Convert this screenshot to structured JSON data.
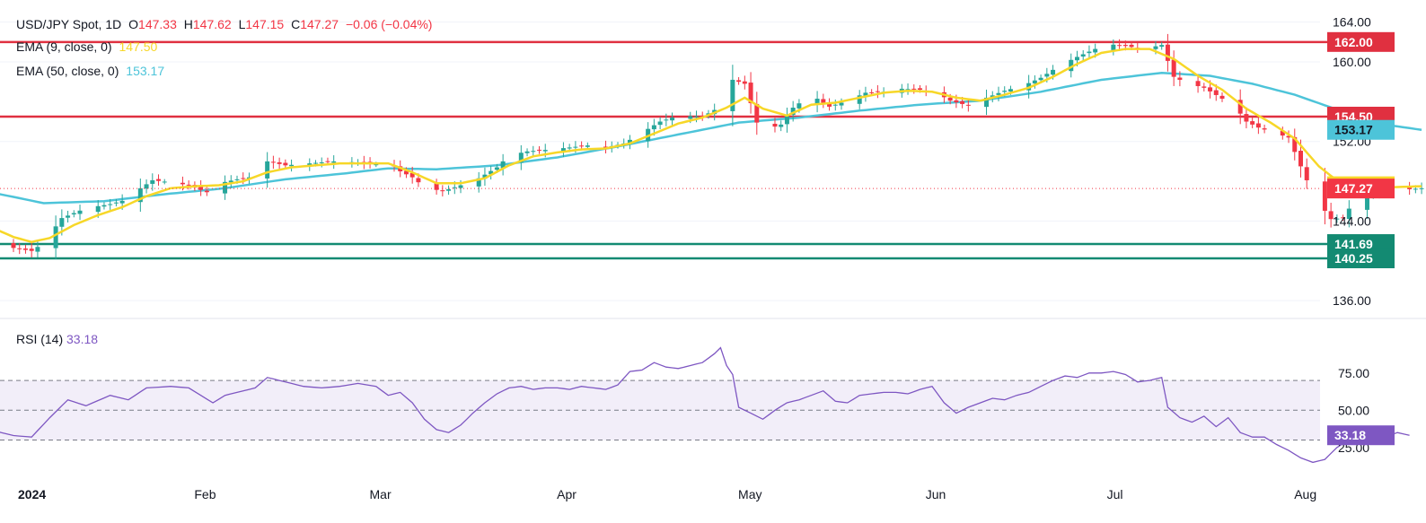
{
  "header": {
    "symbol": "USD/JPY Spot, 1D",
    "open_label": "O",
    "open": "147.33",
    "high_label": "H",
    "high": "147.62",
    "low_label": "L",
    "low": "147.15",
    "close_label": "C",
    "close": "147.27",
    "change": "−0.06 (−0.04%)"
  },
  "indicators": {
    "ema9_label": "EMA (9, close, 0)",
    "ema9_value": "147.50",
    "ema50_label": "EMA (50, close, 0)",
    "ema50_value": "153.17",
    "rsi_label": "RSI (14)",
    "rsi_value": "33.18"
  },
  "colors": {
    "up": "#26a69a",
    "down": "#f23645",
    "ema9": "#f7d728",
    "ema50": "#4dc4d9",
    "rsi": "#7e57c2",
    "resistance": "#e03040",
    "support": "#138a72"
  },
  "chart_data": {
    "type": "candlestick",
    "price_axis": {
      "ticks": [
        "164.00",
        "160.00",
        "152.00",
        "144.00",
        "136.00"
      ],
      "tick_values": [
        164,
        160,
        152,
        144,
        136
      ],
      "ylim": [
        134.3,
        165.5
      ]
    },
    "x_axis": {
      "labels": [
        "2024",
        "Feb",
        "Mar",
        "Apr",
        "May",
        "Jun",
        "Jul",
        "Aug"
      ],
      "label_days": [
        0,
        32,
        61,
        92,
        122,
        153,
        183,
        214
      ]
    },
    "levels": [
      {
        "label": "162.00",
        "value": 162.0,
        "kind": "resistance"
      },
      {
        "label": "154.50",
        "value": 154.5,
        "kind": "resistance"
      },
      {
        "label": "141.69",
        "value": 141.69,
        "kind": "support"
      },
      {
        "label": "140.25",
        "value": 140.25,
        "kind": "support"
      }
    ],
    "last_price": {
      "label": "147.27",
      "value": 147.27
    },
    "ema9_tag": {
      "label": "147.50",
      "value": 147.5
    },
    "ema50_tag": {
      "label": "153.17",
      "value": 153.17
    },
    "close_keypoints": [
      [
        -3,
        141.9
      ],
      [
        0,
        141.3
      ],
      [
        3,
        141.0
      ],
      [
        5,
        141.8
      ],
      [
        8,
        144.3
      ],
      [
        12,
        145.3
      ],
      [
        16,
        145.7
      ],
      [
        19,
        146.2
      ],
      [
        21,
        147.3
      ],
      [
        23,
        148.1
      ],
      [
        26,
        147.9
      ],
      [
        29,
        147.6
      ],
      [
        32,
        146.9
      ],
      [
        34,
        147.8
      ],
      [
        37,
        148.2
      ],
      [
        40,
        148.5
      ],
      [
        42,
        150.0
      ],
      [
        45,
        149.6
      ],
      [
        49,
        149.8
      ],
      [
        53,
        150.0
      ],
      [
        57,
        149.9
      ],
      [
        60,
        149.7
      ],
      [
        62,
        150.1
      ],
      [
        64,
        149.0
      ],
      [
        66,
        148.4
      ],
      [
        68,
        147.4
      ],
      [
        71,
        147.0
      ],
      [
        74,
        147.6
      ],
      [
        77,
        148.3
      ],
      [
        80,
        149.4
      ],
      [
        82,
        150.6
      ],
      [
        85,
        151.0
      ],
      [
        89,
        151.2
      ],
      [
        92,
        151.4
      ],
      [
        95,
        151.6
      ],
      [
        98,
        151.4
      ],
      [
        101,
        151.8
      ],
      [
        104,
        152.9
      ],
      [
        107,
        154.0
      ],
      [
        110,
        154.6
      ],
      [
        114,
        154.5
      ],
      [
        117,
        155.5
      ],
      [
        119,
        158.2
      ],
      [
        121,
        157.8
      ],
      [
        123,
        153.9
      ],
      [
        125,
        153.3
      ],
      [
        127,
        153.7
      ],
      [
        129,
        155.4
      ],
      [
        132,
        156.7
      ],
      [
        135,
        155.5
      ],
      [
        138,
        156.1
      ],
      [
        141,
        156.9
      ],
      [
        144,
        157.0
      ],
      [
        147,
        157.3
      ],
      [
        150,
        157.2
      ],
      [
        153,
        156.8
      ],
      [
        155,
        156.1
      ],
      [
        158,
        155.6
      ],
      [
        161,
        156.4
      ],
      [
        164,
        157.1
      ],
      [
        167,
        157.6
      ],
      [
        170,
        158.4
      ],
      [
        173,
        159.6
      ],
      [
        176,
        160.5
      ],
      [
        179,
        161.3
      ],
      [
        181,
        161.8
      ],
      [
        184,
        161.6
      ],
      [
        187,
        161.3
      ],
      [
        190,
        161.7
      ],
      [
        192,
        158.5
      ],
      [
        194,
        157.9
      ],
      [
        197,
        157.4
      ],
      [
        200,
        156.3
      ],
      [
        202,
        155.6
      ],
      [
        204,
        154.0
      ],
      [
        206,
        153.4
      ],
      [
        208,
        153.0
      ],
      [
        211,
        152.4
      ],
      [
        213,
        149.5
      ],
      [
        215,
        146.7
      ],
      [
        218,
        144.2
      ],
      [
        220,
        144.3
      ],
      [
        222,
        146.2
      ],
      [
        225,
        146.8
      ],
      [
        228,
        147.5
      ],
      [
        231,
        147.2
      ],
      [
        233,
        147.3
      ]
    ],
    "ema9_keypoints": [
      [
        -3,
        143.2
      ],
      [
        0,
        142.4
      ],
      [
        3,
        141.9
      ],
      [
        6,
        142.3
      ],
      [
        10,
        143.6
      ],
      [
        14,
        144.6
      ],
      [
        18,
        145.4
      ],
      [
        22,
        146.5
      ],
      [
        26,
        147.3
      ],
      [
        30,
        147.5
      ],
      [
        34,
        147.6
      ],
      [
        38,
        148.0
      ],
      [
        42,
        148.9
      ],
      [
        46,
        149.4
      ],
      [
        50,
        149.6
      ],
      [
        54,
        149.8
      ],
      [
        58,
        149.8
      ],
      [
        62,
        149.8
      ],
      [
        66,
        148.9
      ],
      [
        70,
        147.8
      ],
      [
        74,
        147.8
      ],
      [
        78,
        148.3
      ],
      [
        82,
        149.6
      ],
      [
        86,
        150.5
      ],
      [
        90,
        150.9
      ],
      [
        94,
        151.2
      ],
      [
        98,
        151.3
      ],
      [
        102,
        151.8
      ],
      [
        106,
        152.8
      ],
      [
        110,
        153.8
      ],
      [
        114,
        154.4
      ],
      [
        118,
        155.4
      ],
      [
        121,
        156.4
      ],
      [
        124,
        155.3
      ],
      [
        128,
        154.6
      ],
      [
        132,
        155.7
      ],
      [
        136,
        155.9
      ],
      [
        140,
        156.4
      ],
      [
        144,
        156.9
      ],
      [
        148,
        157.1
      ],
      [
        152,
        157.0
      ],
      [
        156,
        156.4
      ],
      [
        160,
        156.1
      ],
      [
        164,
        156.7
      ],
      [
        168,
        157.4
      ],
      [
        172,
        158.5
      ],
      [
        176,
        159.8
      ],
      [
        180,
        160.9
      ],
      [
        184,
        161.3
      ],
      [
        188,
        161.3
      ],
      [
        192,
        160.3
      ],
      [
        196,
        158.6
      ],
      [
        200,
        157.2
      ],
      [
        204,
        155.3
      ],
      [
        208,
        153.9
      ],
      [
        212,
        152.3
      ],
      [
        216,
        149.5
      ],
      [
        220,
        147.6
      ],
      [
        224,
        147.3
      ],
      [
        228,
        147.4
      ],
      [
        233,
        147.5
      ]
    ],
    "ema50_keypoints": [
      [
        -3,
        146.8
      ],
      [
        5,
        145.8
      ],
      [
        15,
        146.0
      ],
      [
        25,
        146.7
      ],
      [
        35,
        147.3
      ],
      [
        45,
        148.2
      ],
      [
        55,
        148.8
      ],
      [
        62,
        149.3
      ],
      [
        70,
        149.2
      ],
      [
        80,
        149.6
      ],
      [
        90,
        150.4
      ],
      [
        100,
        151.5
      ],
      [
        110,
        152.7
      ],
      [
        120,
        153.9
      ],
      [
        130,
        154.4
      ],
      [
        140,
        155.1
      ],
      [
        150,
        155.7
      ],
      [
        160,
        156.1
      ],
      [
        170,
        157.0
      ],
      [
        180,
        158.2
      ],
      [
        190,
        158.9
      ],
      [
        198,
        158.6
      ],
      [
        205,
        157.8
      ],
      [
        212,
        156.7
      ],
      [
        220,
        155.0
      ],
      [
        228,
        153.6
      ],
      [
        233,
        153.17
      ]
    ],
    "rsi": {
      "ticks": [
        "75.00",
        "50.00",
        "25.00"
      ],
      "tick_values": [
        75,
        50,
        25
      ],
      "ylim": [
        5,
        105
      ],
      "band": [
        30,
        70
      ],
      "midline": 50,
      "tag": {
        "label": "33.18",
        "value": 33.18
      },
      "keypoints": [
        [
          -3,
          36
        ],
        [
          0,
          33
        ],
        [
          3,
          32
        ],
        [
          6,
          45
        ],
        [
          9,
          57
        ],
        [
          12,
          53
        ],
        [
          16,
          60
        ],
        [
          19,
          57
        ],
        [
          22,
          65
        ],
        [
          26,
          66
        ],
        [
          29,
          65
        ],
        [
          31,
          60
        ],
        [
          33,
          55
        ],
        [
          35,
          60
        ],
        [
          37,
          62
        ],
        [
          40,
          65
        ],
        [
          42,
          72
        ],
        [
          45,
          69
        ],
        [
          48,
          66
        ],
        [
          51,
          65
        ],
        [
          54,
          66
        ],
        [
          57,
          68
        ],
        [
          60,
          66
        ],
        [
          62,
          60
        ],
        [
          64,
          62
        ],
        [
          66,
          55
        ],
        [
          68,
          44
        ],
        [
          70,
          37
        ],
        [
          72,
          35
        ],
        [
          74,
          40
        ],
        [
          76,
          48
        ],
        [
          78,
          55
        ],
        [
          80,
          61
        ],
        [
          82,
          65
        ],
        [
          84,
          66
        ],
        [
          86,
          64
        ],
        [
          88,
          65
        ],
        [
          90,
          65
        ],
        [
          92,
          64
        ],
        [
          94,
          66
        ],
        [
          96,
          65
        ],
        [
          98,
          64
        ],
        [
          100,
          67
        ],
        [
          102,
          76
        ],
        [
          104,
          77
        ],
        [
          106,
          82
        ],
        [
          108,
          79
        ],
        [
          110,
          78
        ],
        [
          112,
          80
        ],
        [
          114,
          82
        ],
        [
          116,
          88
        ],
        [
          117,
          92
        ],
        [
          118,
          80
        ],
        [
          119,
          74
        ],
        [
          120,
          52
        ],
        [
          122,
          48
        ],
        [
          124,
          44
        ],
        [
          126,
          50
        ],
        [
          128,
          55
        ],
        [
          130,
          57
        ],
        [
          132,
          60
        ],
        [
          134,
          63
        ],
        [
          136,
          56
        ],
        [
          138,
          55
        ],
        [
          140,
          60
        ],
        [
          142,
          61
        ],
        [
          144,
          62
        ],
        [
          146,
          62
        ],
        [
          148,
          61
        ],
        [
          150,
          64
        ],
        [
          152,
          66
        ],
        [
          154,
          55
        ],
        [
          156,
          48
        ],
        [
          158,
          52
        ],
        [
          160,
          55
        ],
        [
          162,
          58
        ],
        [
          164,
          57
        ],
        [
          166,
          60
        ],
        [
          168,
          62
        ],
        [
          170,
          66
        ],
        [
          172,
          70
        ],
        [
          174,
          73
        ],
        [
          176,
          72
        ],
        [
          178,
          75
        ],
        [
          180,
          75
        ],
        [
          182,
          76
        ],
        [
          184,
          74
        ],
        [
          186,
          69
        ],
        [
          188,
          70
        ],
        [
          190,
          72
        ],
        [
          191,
          52
        ],
        [
          193,
          45
        ],
        [
          195,
          42
        ],
        [
          197,
          46
        ],
        [
          199,
          39
        ],
        [
          201,
          45
        ],
        [
          203,
          35
        ],
        [
          205,
          32
        ],
        [
          207,
          32
        ],
        [
          209,
          27
        ],
        [
          211,
          23
        ],
        [
          213,
          18
        ],
        [
          215,
          15
        ],
        [
          217,
          17
        ],
        [
          219,
          25
        ],
        [
          221,
          30
        ],
        [
          223,
          31
        ],
        [
          225,
          33
        ],
        [
          227,
          32
        ],
        [
          229,
          35
        ],
        [
          231,
          33.18
        ]
      ]
    }
  }
}
